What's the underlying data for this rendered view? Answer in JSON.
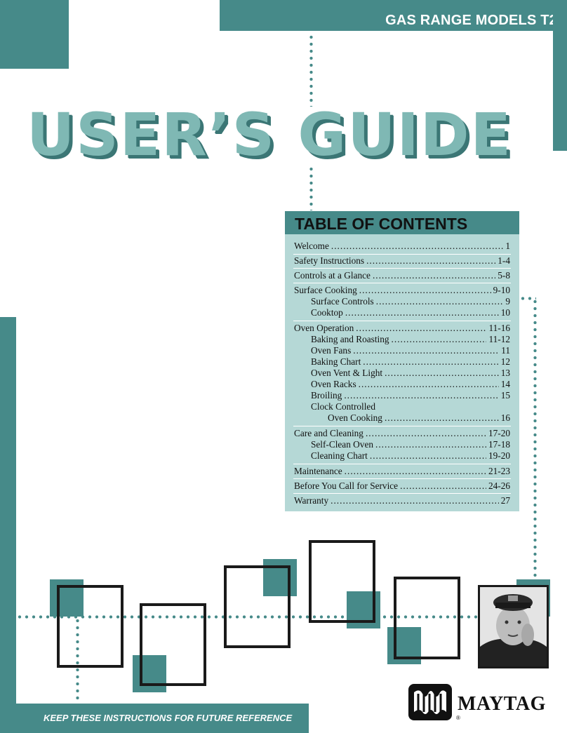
{
  "header": {
    "title": "GAS RANGE MODELS T2"
  },
  "title": "USER’S GUIDE",
  "toc": {
    "heading": "TABLE OF CONTENTS",
    "entries": [
      {
        "label": "Welcome",
        "page": "1"
      },
      {
        "label": "Safety Instructions",
        "page": "1-4"
      },
      {
        "label": "Controls at a Glance",
        "page": "5-8"
      },
      {
        "label": "Surface Cooking",
        "page": "9-10"
      },
      {
        "label": "Surface Controls",
        "page": "9"
      },
      {
        "label": "Cooktop",
        "page": "10"
      },
      {
        "label": "Oven Operation",
        "page": "11-16"
      },
      {
        "label": "Baking and Roasting",
        "page": "11-12"
      },
      {
        "label": "Oven Fans",
        "page": "11"
      },
      {
        "label": "Baking Chart",
        "page": "12"
      },
      {
        "label": "Oven Vent & Light",
        "page": "13"
      },
      {
        "label": "Oven Racks",
        "page": "14"
      },
      {
        "label": "Broiling",
        "page": "15"
      },
      {
        "label": "Clock Controlled",
        "page": ""
      },
      {
        "label": "Oven Cooking",
        "page": "16"
      },
      {
        "label": "Care and Cleaning",
        "page": "17-20"
      },
      {
        "label": "Self-Clean Oven",
        "page": "17-18"
      },
      {
        "label": "Cleaning Chart",
        "page": "19-20"
      },
      {
        "label": "Maintenance",
        "page": "21-23"
      },
      {
        "label": "Before You Call for Service",
        "page": "24-26"
      },
      {
        "label": "Warranty",
        "page": "27"
      }
    ]
  },
  "footer": {
    "note": "KEEP THESE INSTRUCTIONS FOR FUTURE REFERENCE"
  },
  "logo": {
    "text": "MAYTAG",
    "registered": "®"
  },
  "colors": {
    "accent": "#468a89",
    "toc_background": "#b5d8d6",
    "title": "#7fb8b4"
  }
}
